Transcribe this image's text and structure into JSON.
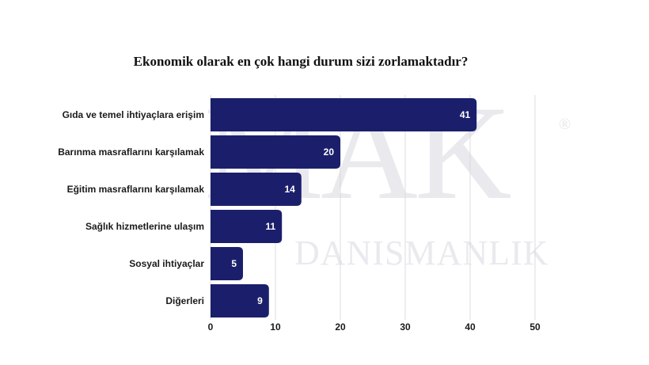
{
  "watermark": {
    "brand": "MAK",
    "registered": "®",
    "subtitle": "DANISMANLIK"
  },
  "chart_data": {
    "type": "bar",
    "orientation": "horizontal",
    "title": "Ekonomik olarak en çok hangi durum sizi zorlamaktadır?",
    "categories": [
      "Gıda ve temel ihtiyaçlara erişim",
      "Barınma masraflarını karşılamak",
      "Eğitim masraflarını karşılamak",
      "Sağlık hizmetlerine ulaşım",
      "Sosyal ihtiyaçlar",
      "Diğerleri"
    ],
    "values": [
      41,
      20,
      14,
      11,
      5,
      9
    ],
    "xlim": [
      0,
      50
    ],
    "xticks": [
      0,
      10,
      20,
      30,
      40,
      50
    ],
    "grid": true,
    "bar_color": "#1b1f6b",
    "xlabel": "",
    "ylabel": ""
  }
}
